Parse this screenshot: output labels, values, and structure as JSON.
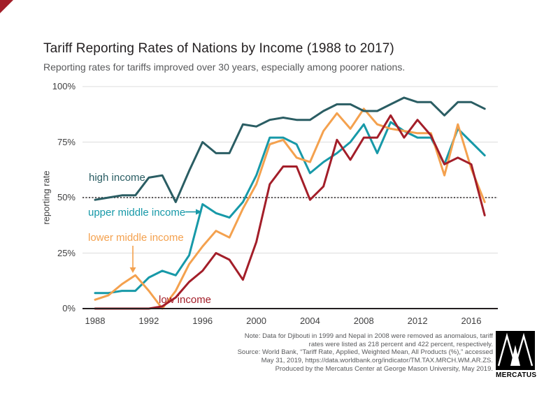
{
  "header": {
    "title": "Tariff Reporting Rates of Nations by Income (1988 to 2017)",
    "subtitle": "Reporting rates for tariffs improved over 30 years, especially among poorer nations."
  },
  "chart_data": {
    "type": "line",
    "title": "Tariff Reporting Rates of Nations by Income (1988 to 2017)",
    "xlabel": "",
    "ylabel": "reporting rate",
    "ylim": [
      0,
      100
    ],
    "grid": "horizontal",
    "reference_line_percent": 50,
    "x": [
      1988,
      1989,
      1990,
      1991,
      1992,
      1993,
      1994,
      1995,
      1996,
      1997,
      1998,
      1999,
      2000,
      2001,
      2002,
      2003,
      2004,
      2005,
      2006,
      2007,
      2008,
      2009,
      2010,
      2011,
      2012,
      2013,
      2014,
      2015,
      2016,
      2017
    ],
    "x_tick_labels": [
      "1988",
      "1992",
      "1996",
      "2000",
      "2004",
      "2008",
      "2012",
      "2016"
    ],
    "x_tick_years": [
      1988,
      1992,
      1996,
      2000,
      2004,
      2008,
      2012,
      2016
    ],
    "y_tick_labels": [
      "100%",
      "75%",
      "50%",
      "25%",
      "0%"
    ],
    "y_tick_values": [
      100,
      75,
      50,
      25,
      0
    ],
    "series": [
      {
        "name": "upper middle income",
        "color": "#1799A8",
        "values": [
          7,
          7,
          8,
          8,
          14,
          17,
          15,
          24,
          47,
          43,
          41,
          48,
          60,
          77,
          77,
          74,
          61,
          66,
          70,
          75,
          83,
          70,
          84,
          80,
          77,
          77,
          65,
          81,
          75,
          69
        ]
      },
      {
        "name": "lower middle income",
        "color": "#F4A14E",
        "values": [
          4,
          6,
          11,
          15,
          8,
          0,
          8,
          20,
          28,
          35,
          32,
          45,
          56,
          74,
          76,
          68,
          66,
          80,
          88,
          81,
          90,
          83,
          81,
          80,
          79,
          79,
          60,
          83,
          63,
          48
        ]
      },
      {
        "name": "low income",
        "color": "#A31E29",
        "values": [
          0,
          0,
          0,
          0,
          0,
          1,
          5,
          12,
          17,
          25,
          22,
          13,
          30,
          56,
          64,
          64,
          49,
          55,
          76,
          67,
          77,
          77,
          87,
          77,
          85,
          78,
          65,
          68,
          65,
          42
        ]
      },
      {
        "name": "high income",
        "color": "#2A5D63",
        "values": [
          49,
          50,
          51,
          51,
          59,
          60,
          48,
          62,
          75,
          70,
          70,
          83,
          82,
          85,
          86,
          85,
          85,
          89,
          92,
          92,
          89,
          89,
          92,
          95,
          93,
          93,
          87,
          93,
          93,
          90
        ]
      }
    ]
  },
  "notes": {
    "lines": [
      "Note: Data for Djibouti in 1999 and Nepal in 2008 were removed as anomalous, tariff",
      "rates were listed as 218 percent and 422 percent, respectively.",
      "Source: World Bank, “Tariff Rate, Applied, Weighted Mean, All Products (%),” accessed",
      "May 31, 2019, https://data.worldbank.org/indicator/TM.TAX.MRCH.WM.AR.ZS.",
      "Produced by the Mercatus Center at  George Mason University, May 2019."
    ]
  },
  "logo": {
    "text": "MERCATUS"
  },
  "colors": {
    "background": "#ffffff",
    "title_text": "#231f20",
    "muted_text": "#58595b",
    "axis_text": "#404041",
    "gridline": "#dcdcdc",
    "axis_line": "#231f20",
    "accent_corner": "#A31E29"
  }
}
